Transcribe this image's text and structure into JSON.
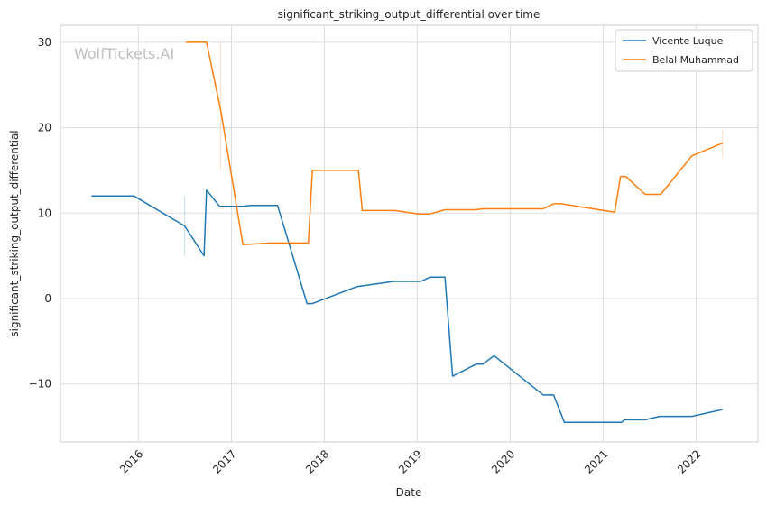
{
  "chart_data": {
    "type": "line",
    "title": "significant_striking_output_differential over time",
    "xlabel": "Date",
    "ylabel": "significant_striking_output_differential",
    "watermark": "WolfTickets.AI",
    "xlim": [
      "2015-03-01",
      "2022-09-01"
    ],
    "ylim": [
      -16.8,
      32
    ],
    "x_ticks": [
      {
        "date": "2016-01-01",
        "label": "2016"
      },
      {
        "date": "2017-01-01",
        "label": "2017"
      },
      {
        "date": "2018-01-01",
        "label": "2018"
      },
      {
        "date": "2019-01-01",
        "label": "2019"
      },
      {
        "date": "2020-01-01",
        "label": "2020"
      },
      {
        "date": "2021-01-01",
        "label": "2021"
      },
      {
        "date": "2022-01-01",
        "label": "2022"
      }
    ],
    "y_ticks": [
      {
        "value": 30,
        "label": "30"
      },
      {
        "value": 20,
        "label": "20"
      },
      {
        "value": 10,
        "label": "10"
      },
      {
        "value": 0,
        "label": "0"
      },
      {
        "value": -10,
        "label": "−10"
      }
    ],
    "grid": true,
    "legend_position": "top-right",
    "series": [
      {
        "name": "Vicente Luque",
        "color": "#1f77b4",
        "points": [
          {
            "x": "2015-07-01",
            "y": 12.0
          },
          {
            "x": "2015-12-15",
            "y": 12.0
          },
          {
            "x": "2016-07-01",
            "y": 8.5
          },
          {
            "x": "2016-09-15",
            "y": 5.0
          },
          {
            "x": "2016-09-25",
            "y": 12.7
          },
          {
            "x": "2016-11-15",
            "y": 10.8
          },
          {
            "x": "2017-02-15",
            "y": 10.8
          },
          {
            "x": "2017-03-15",
            "y": 10.9
          },
          {
            "x": "2017-07-01",
            "y": 10.9
          },
          {
            "x": "2017-10-25",
            "y": -0.6
          },
          {
            "x": "2017-11-15",
            "y": -0.6
          },
          {
            "x": "2018-05-10",
            "y": 1.4
          },
          {
            "x": "2018-10-01",
            "y": 2.0
          },
          {
            "x": "2019-01-15",
            "y": 2.0
          },
          {
            "x": "2019-02-20",
            "y": 2.5
          },
          {
            "x": "2019-04-20",
            "y": 2.5
          },
          {
            "x": "2019-05-20",
            "y": -9.1
          },
          {
            "x": "2019-08-20",
            "y": -7.7
          },
          {
            "x": "2019-09-15",
            "y": -7.7
          },
          {
            "x": "2019-10-30",
            "y": -6.7
          },
          {
            "x": "2020-05-10",
            "y": -11.3
          },
          {
            "x": "2020-06-20",
            "y": -11.3
          },
          {
            "x": "2020-08-01",
            "y": -14.5
          },
          {
            "x": "2021-03-15",
            "y": -14.5
          },
          {
            "x": "2021-03-25",
            "y": -14.2
          },
          {
            "x": "2021-06-15",
            "y": -14.2
          },
          {
            "x": "2021-08-10",
            "y": -13.8
          },
          {
            "x": "2021-12-15",
            "y": -13.8
          },
          {
            "x": "2022-04-15",
            "y": -13.0
          }
        ],
        "error_bars": [
          {
            "x": "2016-07-01",
            "low": 5.0,
            "high": 12.0
          }
        ]
      },
      {
        "name": "Belal Muhammad",
        "color": "#ff7f0e",
        "points": [
          {
            "x": "2016-07-05",
            "y": 30.0
          },
          {
            "x": "2016-09-25",
            "y": 30.0
          },
          {
            "x": "2016-11-20",
            "y": 22.0
          },
          {
            "x": "2017-02-15",
            "y": 6.3
          },
          {
            "x": "2017-06-01",
            "y": 6.5
          },
          {
            "x": "2017-10-30",
            "y": 6.5
          },
          {
            "x": "2017-11-15",
            "y": 15.0
          },
          {
            "x": "2018-05-15",
            "y": 15.0
          },
          {
            "x": "2018-05-30",
            "y": 10.3
          },
          {
            "x": "2018-10-05",
            "y": 10.3
          },
          {
            "x": "2019-01-05",
            "y": 9.9
          },
          {
            "x": "2019-02-20",
            "y": 9.9
          },
          {
            "x": "2019-04-20",
            "y": 10.4
          },
          {
            "x": "2019-08-20",
            "y": 10.4
          },
          {
            "x": "2019-09-15",
            "y": 10.5
          },
          {
            "x": "2020-05-10",
            "y": 10.5
          },
          {
            "x": "2020-06-20",
            "y": 11.1
          },
          {
            "x": "2020-07-20",
            "y": 11.1
          },
          {
            "x": "2021-02-15",
            "y": 10.1
          },
          {
            "x": "2021-03-10",
            "y": 14.3
          },
          {
            "x": "2021-03-30",
            "y": 14.3
          },
          {
            "x": "2021-06-15",
            "y": 12.2
          },
          {
            "x": "2021-08-15",
            "y": 12.2
          },
          {
            "x": "2021-12-15",
            "y": 16.7
          },
          {
            "x": "2022-04-15",
            "y": 18.2
          }
        ],
        "error_bars": [
          {
            "x": "2016-11-20",
            "low": 15.0,
            "high": 30.0
          },
          {
            "x": "2022-04-15",
            "low": 16.5,
            "high": 19.8
          }
        ]
      }
    ]
  }
}
